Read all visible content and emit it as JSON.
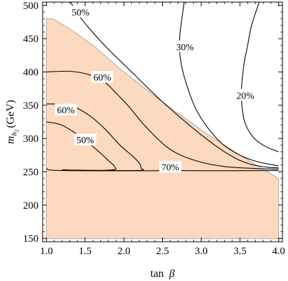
{
  "chart_data": {
    "type": "contour",
    "title": "",
    "xlabel": {
      "main": "tan",
      "symbol": "β"
    },
    "ylabel": {
      "main": "m",
      "sub": "h",
      "subsub": "2",
      "unit": "(GeV)"
    },
    "xlim": [
      0.95,
      4.05
    ],
    "ylim": [
      145,
      505
    ],
    "xticks": [
      1.0,
      1.5,
      2.0,
      2.5,
      3.0,
      3.5,
      4.0
    ],
    "xtick_labels": [
      "1.0",
      "1.5",
      "2.0",
      "2.5",
      "3.0",
      "3.5",
      "4.0"
    ],
    "yticks": [
      150,
      200,
      250,
      300,
      350,
      400,
      450,
      500
    ],
    "ytick_labels": [
      "150",
      "200",
      "250",
      "300",
      "350",
      "400",
      "450",
      "500"
    ],
    "shaded_region": {
      "color": "#fdd9bf",
      "boundary": [
        [
          1.0,
          480
        ],
        [
          1.08,
          480
        ],
        [
          1.3,
          465
        ],
        [
          1.6,
          440
        ],
        [
          2.0,
          400
        ],
        [
          2.5,
          355
        ],
        [
          3.0,
          313
        ],
        [
          3.5,
          275
        ],
        [
          4.0,
          240
        ],
        [
          4.0,
          150
        ],
        [
          1.0,
          150
        ]
      ]
    },
    "contours": [
      {
        "label": "50%",
        "points": [
          [
            1.31,
            505
          ],
          [
            1.45,
            480
          ],
          [
            1.75,
            440
          ],
          [
            2.1,
            400
          ],
          [
            2.5,
            355
          ],
          [
            2.9,
            315
          ],
          [
            3.2,
            288
          ],
          [
            3.45,
            270
          ],
          [
            3.65,
            261
          ],
          [
            3.85,
            257
          ],
          [
            4.0,
            256
          ]
        ]
      },
      {
        "label": "30%",
        "points": [
          [
            2.78,
            505
          ],
          [
            2.75,
            480
          ],
          [
            2.72,
            450
          ],
          [
            2.73,
            420
          ],
          [
            2.8,
            385
          ],
          [
            2.95,
            340
          ],
          [
            3.2,
            300
          ],
          [
            3.45,
            278
          ],
          [
            3.7,
            266
          ],
          [
            4.0,
            259
          ]
        ]
      },
      {
        "label": "20%",
        "points": [
          [
            3.75,
            505
          ],
          [
            3.65,
            470
          ],
          [
            3.6,
            440
          ],
          [
            3.55,
            410
          ],
          [
            3.52,
            370
          ],
          [
            3.55,
            330
          ],
          [
            3.65,
            305
          ],
          [
            3.8,
            290
          ],
          [
            4.0,
            280
          ]
        ]
      },
      {
        "label": "60%",
        "points": [
          [
            1.0,
            400
          ],
          [
            1.3,
            401
          ],
          [
            1.55,
            396
          ],
          [
            1.75,
            385
          ],
          [
            1.9,
            368
          ],
          [
            2.05,
            350
          ],
          [
            2.25,
            322
          ],
          [
            2.45,
            298
          ],
          [
            2.65,
            280
          ],
          [
            2.95,
            266
          ],
          [
            3.3,
            258
          ],
          [
            3.7,
            255
          ],
          [
            4.0,
            254
          ]
        ]
      },
      {
        "label": "60%",
        "points": [
          [
            1.0,
            352
          ],
          [
            1.3,
            350
          ],
          [
            1.55,
            335
          ],
          [
            1.75,
            315
          ],
          [
            1.95,
            290
          ],
          [
            2.1,
            275
          ],
          [
            2.2,
            263
          ],
          [
            2.22,
            256
          ],
          [
            2.18,
            252
          ],
          [
            1.4,
            252.5
          ],
          [
            1.2,
            253
          ]
        ]
      },
      {
        "label": "50%",
        "points": [
          [
            1.0,
            325
          ],
          [
            1.2,
            320
          ],
          [
            1.45,
            302
          ],
          [
            1.65,
            283
          ],
          [
            1.8,
            267
          ],
          [
            1.88,
            258
          ],
          [
            1.86,
            253
          ],
          [
            1.5,
            252
          ],
          [
            1.2,
            253
          ]
        ]
      },
      {
        "label": "70%",
        "points": [
          [
            1.0,
            255
          ],
          [
            1.2,
            252
          ],
          [
            2.6,
            252
          ],
          [
            2.68,
            255
          ],
          [
            2.75,
            252
          ],
          [
            4.0,
            252
          ]
        ]
      }
    ],
    "contour_labels": [
      {
        "text": "50%",
        "x": 1.44,
        "y": 490
      },
      {
        "text": "30%",
        "x": 2.79,
        "y": 438
      },
      {
        "text": "20%",
        "x": 3.57,
        "y": 365
      },
      {
        "text": "60%",
        "x": 1.72,
        "y": 392
      },
      {
        "text": "60%",
        "x": 1.25,
        "y": 343
      },
      {
        "text": "50%",
        "x": 1.5,
        "y": 298
      },
      {
        "text": "70%",
        "x": 2.6,
        "y": 257
      }
    ]
  }
}
